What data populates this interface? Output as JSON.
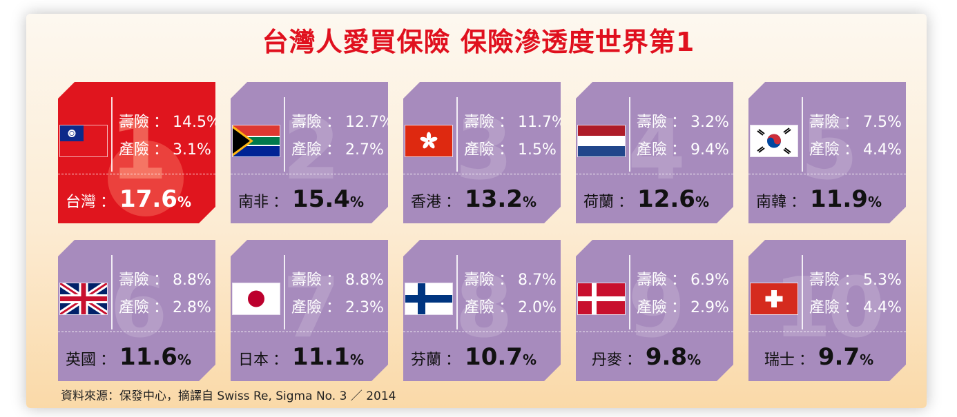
{
  "title": "台灣人愛買保險 保險滲透度世界第1",
  "labels": {
    "life": "壽險",
    "property": "產險",
    "colon": "：",
    "pct": "%"
  },
  "cards": [
    {
      "rank": "1",
      "country": "台灣",
      "life": "14.5%",
      "property": "3.1%",
      "total": "17.6",
      "flag": "taiwan-flag-icon"
    },
    {
      "rank": "2",
      "country": "南非",
      "life": "12.7%",
      "property": "2.7%",
      "total": "15.4",
      "flag": "south-africa-flag-icon"
    },
    {
      "rank": "3",
      "country": "香港",
      "life": "11.7%",
      "property": "1.5%",
      "total": "13.2",
      "flag": "hong-kong-flag-icon"
    },
    {
      "rank": "4",
      "country": "荷蘭",
      "life": "3.2%",
      "property": "9.4%",
      "total": "12.6",
      "flag": "netherlands-flag-icon"
    },
    {
      "rank": "5",
      "country": "南韓",
      "life": "7.5%",
      "property": "4.4%",
      "total": "11.9",
      "flag": "south-korea-flag-icon"
    },
    {
      "rank": "6",
      "country": "英國",
      "life": "8.8%",
      "property": "2.8%",
      "total": "11.6",
      "flag": "uk-flag-icon"
    },
    {
      "rank": "7",
      "country": "日本",
      "life": "8.8%",
      "property": "2.3%",
      "total": "11.1",
      "flag": "japan-flag-icon"
    },
    {
      "rank": "8",
      "country": "芬蘭",
      "life": "8.7%",
      "property": "2.0%",
      "total": "10.7",
      "flag": "finland-flag-icon"
    },
    {
      "rank": "9",
      "country": "丹麥",
      "life": "6.9%",
      "property": "2.9%",
      "total": "9.8",
      "flag": "denmark-flag-icon"
    },
    {
      "rank": "10",
      "country": "瑞士",
      "life": "5.3%",
      "property": "4.4%",
      "total": "9.7",
      "flag": "switzerland-flag-icon"
    }
  ],
  "source": "資料來源：保發中心，摘譯自 Swiss Re, Sigma No. 3 ／ 2014",
  "colors": {
    "title": "#e0101e",
    "top_card": "#e0151e",
    "card": "#a78bbd"
  }
}
